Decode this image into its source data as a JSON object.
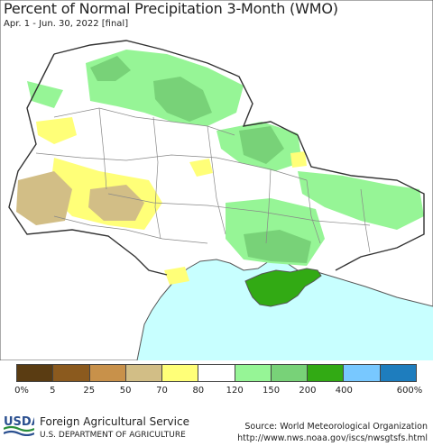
{
  "title": "Percent of Normal Precipitation 3-Month (WMO)",
  "subtitle": "Apr. 1 - Jun. 30, 2022 [final]",
  "colors": {
    "sea": "#c8ffff",
    "land_base": "#ffffff",
    "border": "#555555",
    "province_border": "#888888"
  },
  "legend": {
    "colors": [
      "#5a3c12",
      "#8b5a1e",
      "#c8914a",
      "#d2be86",
      "#ffff78",
      "#ffffff",
      "#96f596",
      "#78d278",
      "#32aa14",
      "#78c8ff",
      "#1e7dbe"
    ],
    "ticks": [
      "0%",
      "5",
      "25",
      "50",
      "70",
      "80",
      "120",
      "150",
      "200",
      "400",
      "600%"
    ]
  },
  "footer": {
    "agency": "Foreign Agricultural Service",
    "department": "U.S. DEPARTMENT OF AGRICULTURE",
    "logo_text": "USDA",
    "source": "Source: World Meteorological Organization",
    "url": "http://www.nws.noaa.gov/iscs/nwsgtsfs.html"
  }
}
